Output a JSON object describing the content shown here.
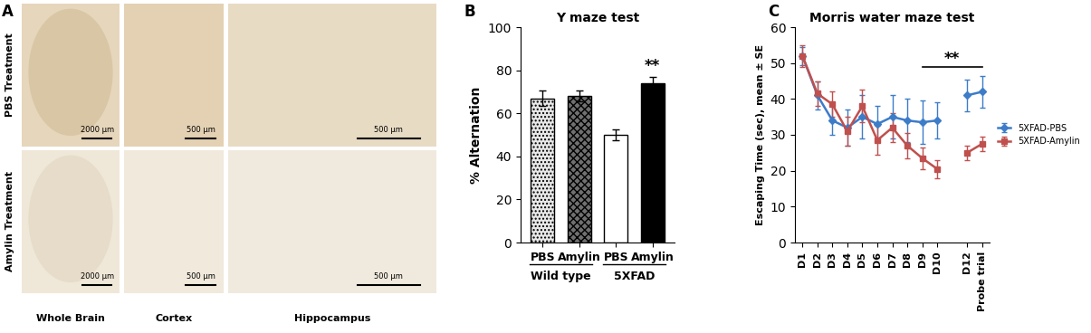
{
  "panel_labels": [
    "A",
    "B",
    "C"
  ],
  "images": {
    "rows": [
      "PBS Treatment",
      "Amylin Treatment"
    ],
    "columns": [
      "Whole Brain",
      "Cortex",
      "Hippocampus"
    ],
    "scale_bars": [
      "2000 μm",
      "500 μm",
      "500 μm"
    ]
  },
  "chart_data": [
    {
      "type": "bar",
      "title": "Y maze test",
      "y_label": "% Alternation",
      "categories": [
        "PBS",
        "Amylin",
        "PBS",
        "Amylin"
      ],
      "values": [
        67,
        68,
        50,
        74
      ],
      "errors": [
        3.5,
        2.5,
        2.5,
        3
      ],
      "colors": [
        "#e8e8e8",
        "#707070",
        "#ffffff",
        "#000000"
      ],
      "groups": [
        {
          "name": "Wild type",
          "size": 2
        },
        {
          "name": "5XFAD",
          "size": 2
        }
      ],
      "annotations": [
        {
          "text": "**",
          "index": 3
        }
      ],
      "ylim": [
        0,
        100
      ],
      "yticks": [
        0,
        20,
        40,
        60,
        80,
        100
      ],
      "grid": false
    },
    {
      "type": "line",
      "title": "Morris water maze test",
      "y_label": "Escaping Time (sec), mean ± SE",
      "categories": [
        "D1",
        "D2",
        "D3",
        "D4",
        "D5",
        "D6",
        "D7",
        "D8",
        "D9",
        "D10",
        null,
        "D12",
        "Probe trial"
      ],
      "series": [
        {
          "name": "5XFAD-PBS",
          "color": "#3d7cc9",
          "marker": "diamond",
          "values": [
            52,
            41,
            34,
            32,
            35,
            33,
            35,
            34,
            33.5,
            34,
            null,
            41,
            42
          ],
          "errors": [
            2.5,
            4,
            4,
            5,
            6,
            5,
            6,
            6,
            6,
            5,
            null,
            4.5,
            4.5
          ]
        },
        {
          "name": "5XFAD-Amylin",
          "color": "#c0504d",
          "marker": "square",
          "values": [
            52,
            41.5,
            38.5,
            31,
            38,
            28.5,
            32,
            27,
            23.5,
            20.5,
            null,
            25,
            27.5
          ],
          "errors": [
            3,
            3.5,
            3.5,
            4,
            4.5,
            4,
            4,
            3.5,
            3,
            2.5,
            null,
            2,
            2
          ]
        }
      ],
      "annotations": [
        {
          "text": "**",
          "from": "D9",
          "to": "Probe trial",
          "y": 49
        }
      ],
      "legend": "center left",
      "ylim": [
        0,
        60
      ],
      "yticks": [
        0,
        10,
        20,
        30,
        40,
        50,
        60
      ],
      "grid": false
    }
  ]
}
